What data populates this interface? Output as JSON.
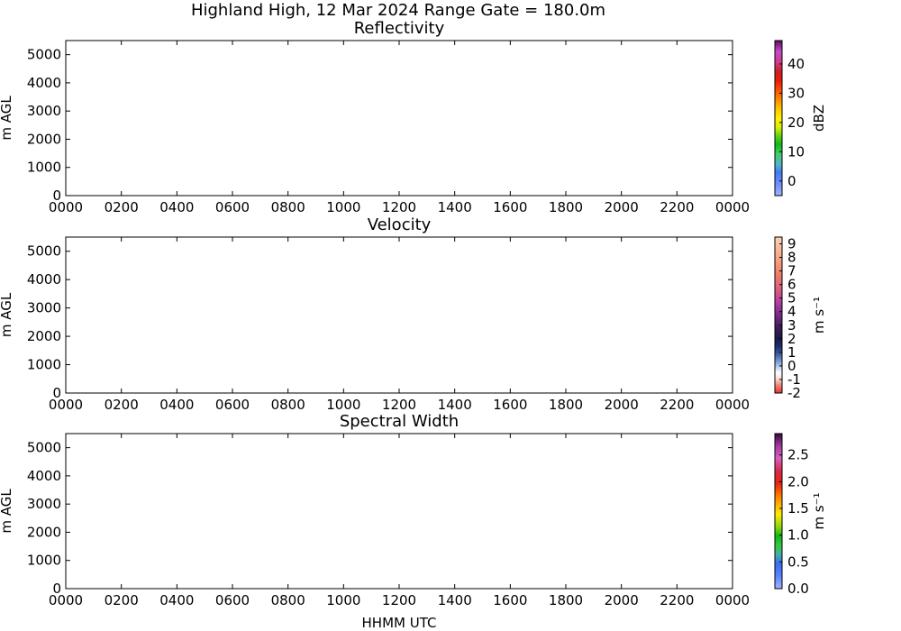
{
  "title": "Highland High, 12 Mar 2024 Range Gate = 180.0m",
  "chart_data": [
    {
      "type": "heatmap",
      "title": "Reflectivity",
      "ylabel": "m AGL",
      "xlabel": "",
      "x_ticks": [
        "0000",
        "0200",
        "0400",
        "0600",
        "0800",
        "1000",
        "1200",
        "1400",
        "1600",
        "1800",
        "2000",
        "2200",
        "0000"
      ],
      "y_ticks": [
        0,
        1000,
        2000,
        3000,
        4000,
        5000
      ],
      "ylim": [
        0,
        5500
      ],
      "colorbar": {
        "label": "dBZ",
        "ticks": [
          "0",
          "10",
          "20",
          "30",
          "40"
        ],
        "tick_values": [
          0,
          10,
          20,
          30,
          40
        ],
        "range": [
          -5,
          48
        ]
      }
    },
    {
      "type": "heatmap",
      "title": "Velocity",
      "ylabel": "m AGL",
      "xlabel": "",
      "x_ticks": [
        "0000",
        "0200",
        "0400",
        "0600",
        "0800",
        "1000",
        "1200",
        "1400",
        "1600",
        "1800",
        "2000",
        "2200",
        "0000"
      ],
      "y_ticks": [
        0,
        1000,
        2000,
        3000,
        4000,
        5000
      ],
      "ylim": [
        0,
        5500
      ],
      "colorbar": {
        "label": "m s⁻¹",
        "ticks": [
          "-2",
          "-1",
          "0",
          "1",
          "2",
          "3",
          "4",
          "5",
          "6",
          "7",
          "8",
          "9"
        ],
        "tick_values": [
          -2,
          -1,
          0,
          1,
          2,
          3,
          4,
          5,
          6,
          7,
          8,
          9
        ],
        "range": [
          -2,
          9.5
        ]
      }
    },
    {
      "type": "heatmap",
      "title": "Spectral Width",
      "ylabel": "m AGL",
      "xlabel": "HHMM UTC",
      "x_ticks": [
        "0000",
        "0200",
        "0400",
        "0600",
        "0800",
        "1000",
        "1200",
        "1400",
        "1600",
        "1800",
        "2000",
        "2200",
        "0000"
      ],
      "y_ticks": [
        0,
        1000,
        2000,
        3000,
        4000,
        5000
      ],
      "ylim": [
        0,
        5500
      ],
      "colorbar": {
        "label": "m s⁻¹",
        "ticks": [
          "0.0",
          "0.5",
          "1.0",
          "1.5",
          "2.0",
          "2.5"
        ],
        "tick_values": [
          0,
          0.5,
          1,
          1.5,
          2,
          2.5
        ],
        "range": [
          0,
          2.9
        ]
      }
    }
  ]
}
